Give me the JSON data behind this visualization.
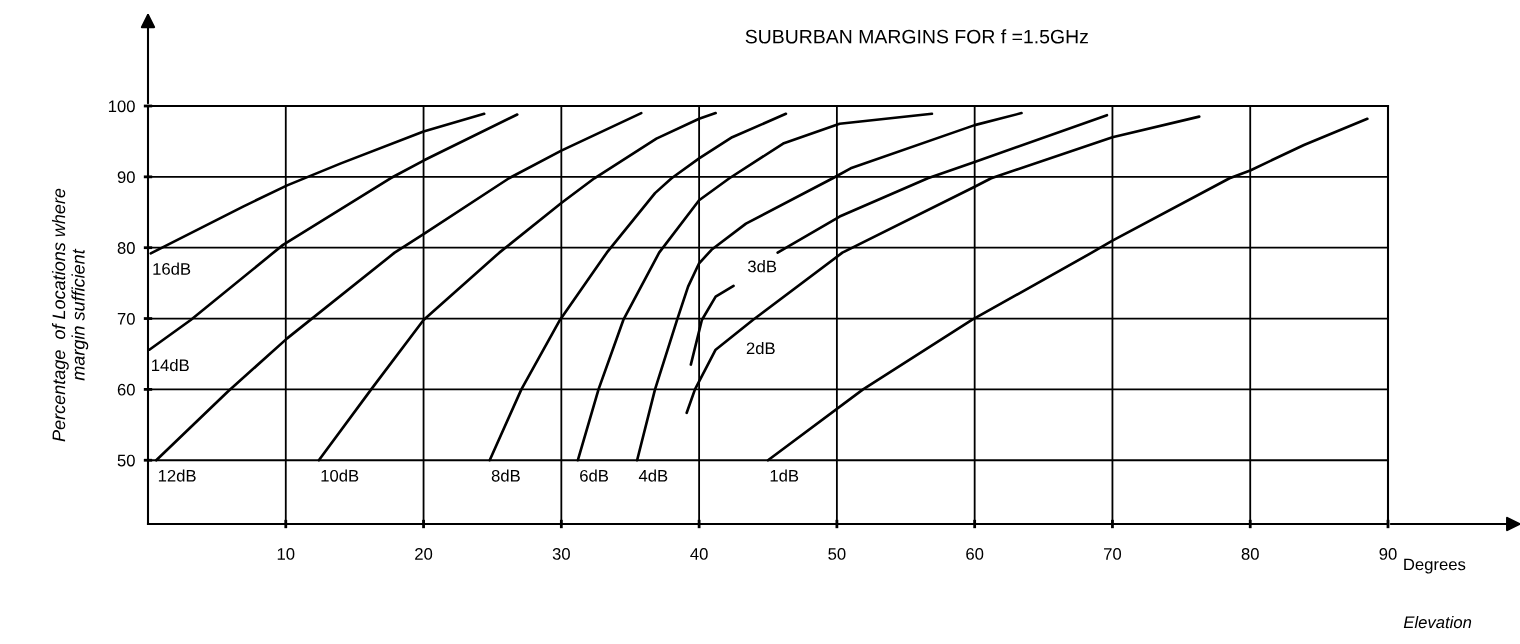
{
  "chart_data": {
    "type": "line",
    "title": "SUBURBAN MARGINS FOR f =1.5GHz",
    "xlabel": "Elevation",
    "ylabel": "Percentage  of Locations where\nmargin sufficient",
    "annotations": [
      "Degrees"
    ],
    "xlim": [
      0,
      90
    ],
    "xticks": [
      10,
      20,
      30,
      40,
      50,
      60,
      70,
      80,
      90
    ],
    "ylim": [
      41,
      100
    ],
    "yticks": [
      50,
      60,
      70,
      80,
      90,
      100
    ],
    "grid": true,
    "legend": false,
    "marker": "none",
    "line_style": "solid",
    "series": [
      {
        "name": "16dB",
        "color": "#000000",
        "x": [
          0.2,
          6.9,
          10.1,
          14.0,
          20.0,
          24.4
        ],
        "values": [
          79.2,
          85.8,
          88.8,
          91.9,
          96.4,
          98.9
        ]
      },
      {
        "name": "14dB",
        "color": "#000000",
        "x": [
          0.1,
          3.1,
          9.8,
          17.6,
          20.0,
          26.8
        ],
        "values": [
          65.6,
          69.8,
          80.4,
          89.8,
          92.3,
          98.8
        ]
      },
      {
        "name": "12dB",
        "color": "#000000",
        "x": [
          0.6,
          5.8,
          10.1,
          17.9,
          20.0,
          26.2,
          30.0,
          35.8
        ],
        "values": [
          50,
          59.7,
          67.2,
          79.3,
          81.9,
          89.8,
          93.7,
          99.0
        ]
      },
      {
        "name": "10dB",
        "color": "#000000",
        "x": [
          12.4,
          16.2,
          20.0,
          25.5,
          30.0,
          32.4,
          36.9,
          40.0,
          41.2
        ],
        "values": [
          50,
          60,
          69.8,
          79.3,
          86.3,
          89.8,
          95.4,
          98.2,
          99.0
        ]
      },
      {
        "name": "8dB",
        "color": "#000000",
        "x": [
          24.8,
          27.1,
          29.9,
          33.3,
          36.8,
          38.0,
          40.0,
          42.4,
          46.3
        ],
        "values": [
          50,
          60,
          69.8,
          79.3,
          87.7,
          89.8,
          92.6,
          95.6,
          98.9
        ]
      },
      {
        "name": "6dB",
        "color": "#000000",
        "x": [
          31.2,
          32.7,
          34.5,
          37.1,
          40.0,
          42.2,
          46.1,
          50.2,
          56.9
        ],
        "values": [
          50,
          60,
          69.8,
          79.3,
          86.7,
          89.8,
          94.7,
          97.5,
          98.9
        ]
      },
      {
        "name": "4dB",
        "color": "#000000",
        "x": [
          35.5,
          36.8,
          38.4,
          39.2,
          40.0,
          40.9,
          43.4,
          49.7,
          51.0,
          60.0,
          63.4
        ],
        "values": [
          50,
          60,
          69.8,
          74.5,
          77.8,
          79.7,
          83.4,
          89.8,
          91.2,
          97.3,
          99.0
        ]
      },
      {
        "name": "3dB",
        "color": "#000000",
        "x": [
          39.4,
          40.2,
          41.2,
          42.5,
          44.0,
          45.7,
          50.2,
          56.6,
          60.0,
          69.6
        ],
        "values": [
          63.5,
          69.8,
          73.1,
          74.6,
          null,
          79.3,
          84.4,
          89.8,
          92.1,
          98.7
        ]
      },
      {
        "name": "2dB",
        "color": "#000000",
        "x": [
          39.1,
          39.7,
          41.2,
          43.9,
          50.4,
          60.0,
          61.2,
          70.0,
          76.3
        ],
        "values": [
          56.7,
          60,
          65.6,
          69.8,
          79.3,
          88.6,
          89.8,
          95.6,
          98.5
        ]
      },
      {
        "name": "1dB",
        "color": "#000000",
        "x": [
          45.0,
          51.9,
          59.8,
          68.5,
          70.0,
          78.5,
          80.0,
          83.9,
          88.5
        ],
        "values": [
          50,
          60,
          69.8,
          79.3,
          81.0,
          89.8,
          90.9,
          94.5,
          98.2
        ]
      }
    ]
  }
}
